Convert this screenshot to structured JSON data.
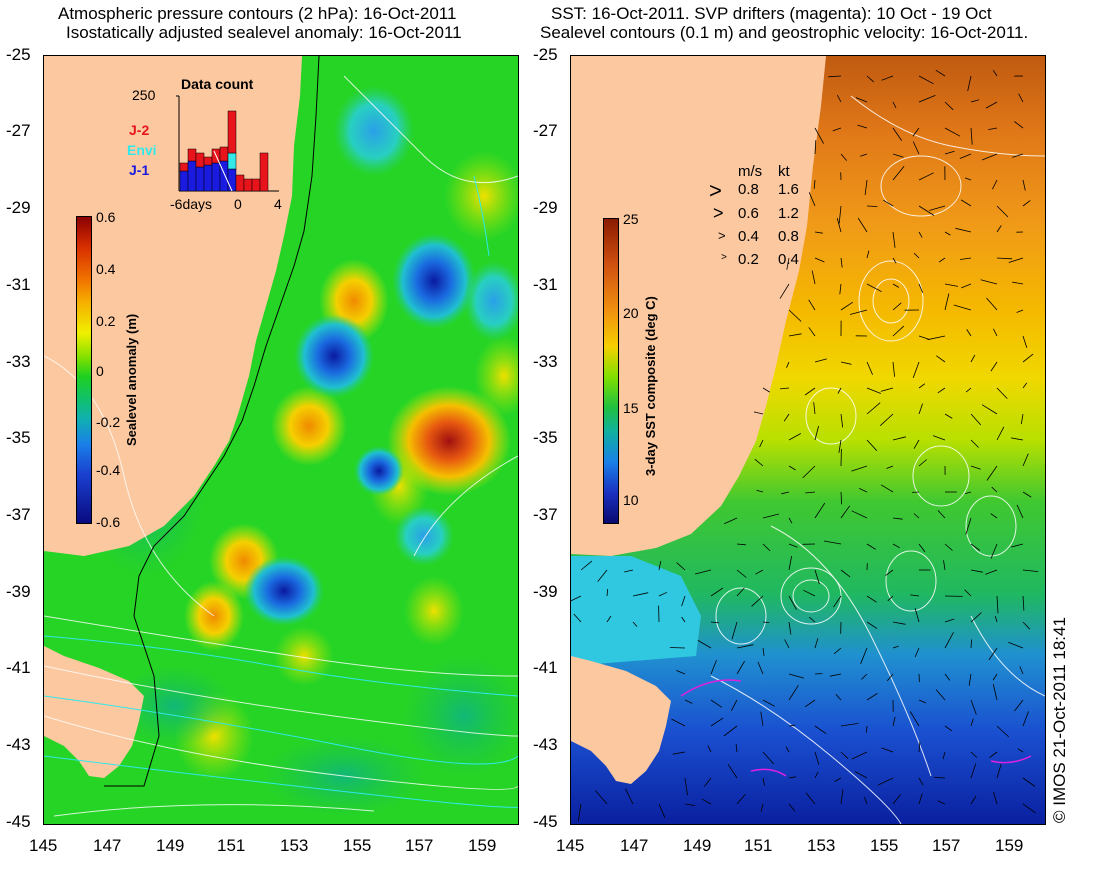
{
  "left": {
    "title1": "Atmospheric pressure contours (2 hPa): 16-Oct-2011",
    "title2": "Isostatically adjusted sealevel anomaly: 16-Oct-2011",
    "colorbar_label": "Sealevel anomaly (m)",
    "colorbar_ticks": [
      "0.6",
      "0.4",
      "0.2",
      "0",
      "-0.2",
      "-0.4",
      "-0.6"
    ],
    "inset": {
      "title": "Data count",
      "ymax": "250",
      "xticks": [
        "-6days",
        "0",
        "4"
      ],
      "legend": [
        {
          "label": "J-2",
          "color": "#e8141c"
        },
        {
          "label": "Envi",
          "color": "#33e8e8"
        },
        {
          "label": "J-1",
          "color": "#1a1ae0"
        }
      ]
    }
  },
  "right": {
    "title1": "SST: 16-Oct-2011. SVP drifters (magenta): 10 Oct - 19 Oct",
    "title2": "Sealevel contours (0.1 m) and geostrophic velocity: 16-Oct-2011.",
    "colorbar_label": "3-day SST composite (deg C)",
    "colorbar_ticks": [
      "25",
      "20",
      "15",
      "10"
    ],
    "speed_legend": {
      "header_ms": "m/s",
      "header_kt": "kt",
      "rows": [
        {
          "ms": "0.8",
          "kt": "1.6"
        },
        {
          "ms": "0.6",
          "kt": "1.2"
        },
        {
          "ms": "0.4",
          "kt": "0.8"
        },
        {
          "ms": "0.2",
          "kt": "0.4"
        }
      ]
    }
  },
  "axes": {
    "lat_ticks": [
      "-25",
      "-27",
      "-29",
      "-31",
      "-33",
      "-35",
      "-37",
      "-39",
      "-41",
      "-43",
      "-45"
    ],
    "lon_ticks": [
      "145",
      "147",
      "149",
      "151",
      "153",
      "155",
      "157",
      "159"
    ]
  },
  "copyright": "© IMOS 21-Oct-2011 18:41"
}
